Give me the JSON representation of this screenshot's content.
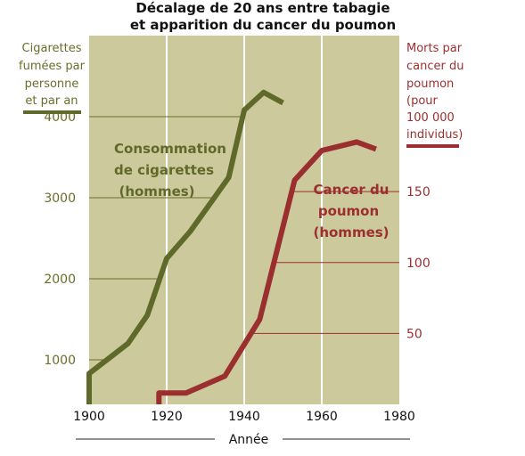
{
  "colors": {
    "background": "#ccc99c",
    "cigarettes": "#5f6a2a",
    "cancer": "#9b2f2f",
    "vgrid": "#ffffff"
  },
  "chart_data": {
    "type": "line",
    "title": [
      "Décalage de 20 ans entre tabagie",
      "et apparition du cancer du poumon"
    ],
    "xlabel": "Année",
    "x_ticks": [
      1900,
      1920,
      1940,
      1960,
      1980
    ],
    "xlim": [
      1900,
      1980
    ],
    "y_left": {
      "label": [
        "Cigarettes",
        "fumées par",
        "personne",
        "et par an"
      ],
      "ticks": [
        1000,
        2000,
        3000,
        4000
      ],
      "lim": [
        450,
        5000
      ]
    },
    "y_right": {
      "label": [
        "Morts par",
        "cancer du",
        "poumon",
        "(pour",
        "100 000",
        "individus)"
      ],
      "ticks": [
        50,
        100,
        150
      ],
      "lim": [
        0,
        260
      ]
    },
    "annotations": {
      "cigarettes": [
        "Consommation",
        "de cigarettes",
        "(hommes)"
      ],
      "cancer": [
        "Cancer du",
        "poumon",
        "(hommes)"
      ]
    },
    "series": [
      {
        "name": "Consommation de cigarettes (hommes)",
        "axis": "left",
        "x": [
          1900,
          1900,
          1910,
          1915,
          1920,
          1926,
          1932,
          1936,
          1940,
          1945,
          1950
        ],
        "y": [
          450,
          830,
          1200,
          1550,
          2250,
          2580,
          2980,
          3250,
          4080,
          4300,
          4170
        ]
      },
      {
        "name": "Cancer du poumon (hommes)",
        "axis": "right",
        "x": [
          1918,
          1918,
          1925,
          1935,
          1944,
          1953,
          1960,
          1969,
          1974
        ],
        "y": [
          0,
          8,
          8,
          20,
          60,
          158,
          179,
          185,
          180
        ]
      }
    ]
  }
}
